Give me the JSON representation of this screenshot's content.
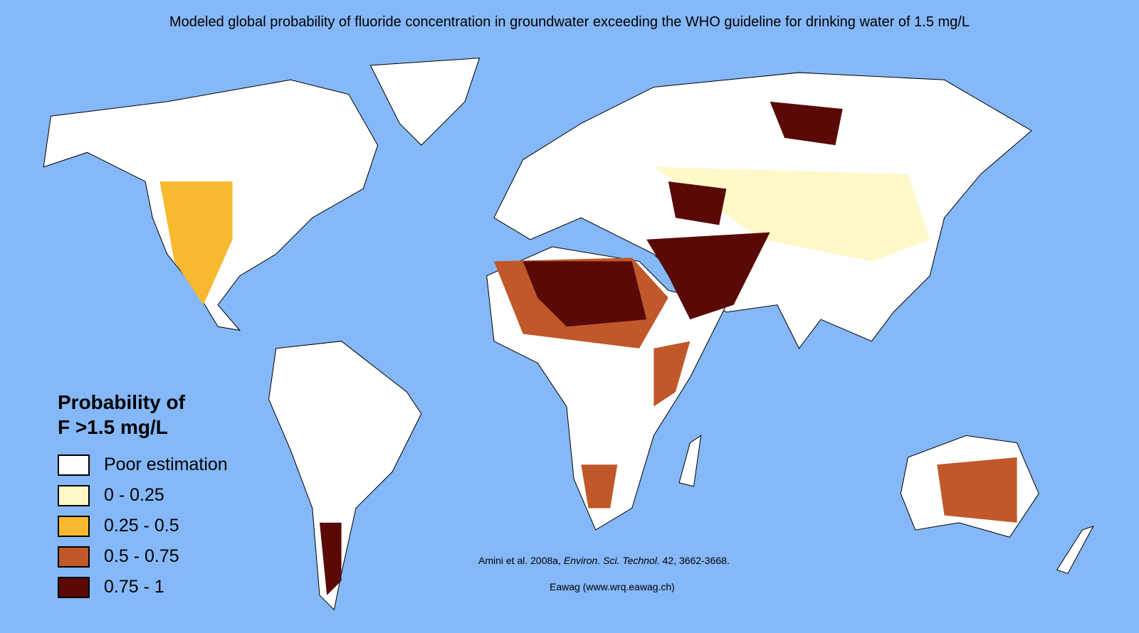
{
  "title": "Modeled global probability of fluoride concentration in groundwater exceeding the WHO guideline for drinking water of 1.5 mg/L",
  "legend": {
    "title_lines": [
      "Probability of",
      "F >1.5 mg/L"
    ],
    "items": [
      {
        "label": "Poor estimation",
        "color": "#ffffff"
      },
      {
        "label": "0 - 0.25",
        "color": "#fff8c8"
      },
      {
        "label": "0.25 - 0.5",
        "color": "#f8b830"
      },
      {
        "label": "0.5 - 0.75",
        "color": "#c0582a"
      },
      {
        "label": "0.75 - 1",
        "color": "#5a0a06"
      }
    ]
  },
  "citation": {
    "authors": "Amini et al. 2008a,",
    "journal": "Environ. Sci. Technol.",
    "details": "42, 3662-3668."
  },
  "source": "Eawag (www.wrq.eawag.ch)"
}
